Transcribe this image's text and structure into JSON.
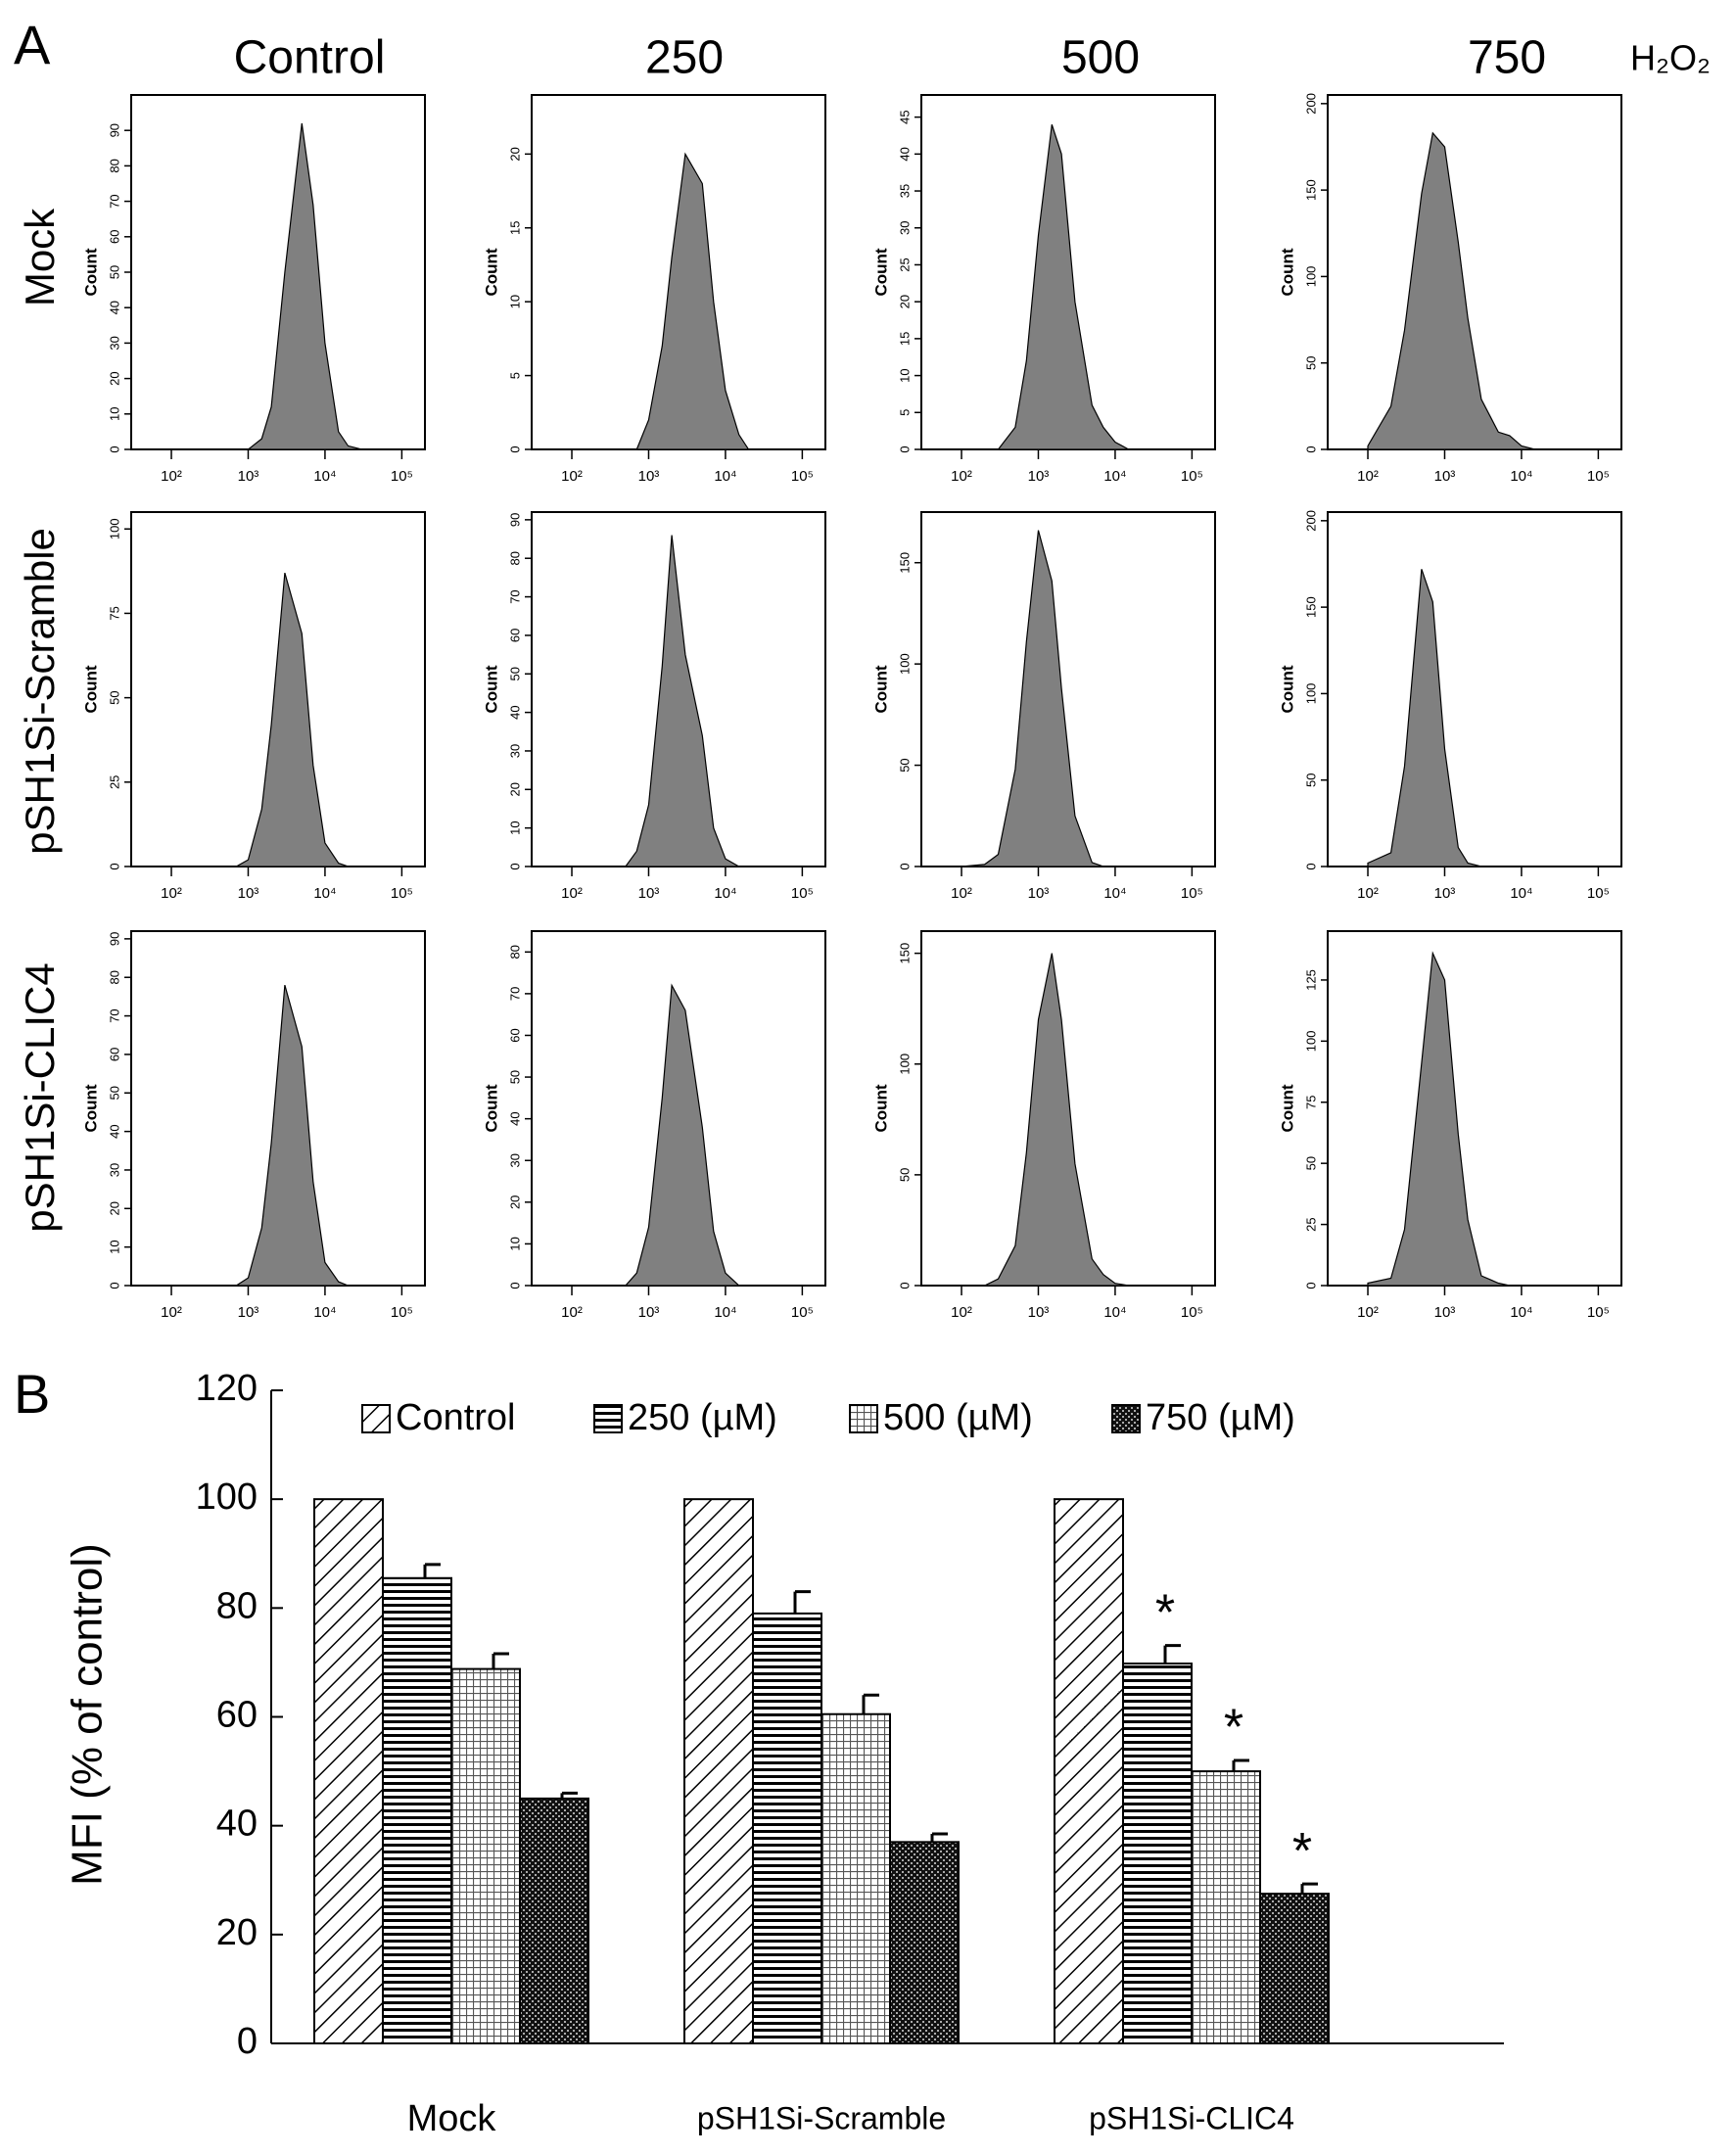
{
  "labels": {
    "panel_a": "A",
    "panel_b": "B",
    "columns": [
      "Control",
      "250",
      "500",
      "750",
      "H₂O₂"
    ],
    "rows": [
      "Mock",
      "pSH1Si-Scramble",
      "pSH1Si-CLIC4"
    ]
  },
  "chart_data": [
    {
      "type": "histogram",
      "y_label": "Count",
      "log_x": true,
      "xlim": [
        30,
        200000
      ],
      "ylim": [
        0,
        100
      ],
      "xticks": [
        {
          "value": 100,
          "label": "10²"
        },
        {
          "value": 1000,
          "label": "10³"
        },
        {
          "value": 10000,
          "label": "10⁴"
        },
        {
          "value": 100000,
          "label": "10⁵"
        }
      ],
      "yticks": [
        0,
        10,
        20,
        30,
        40,
        50,
        60,
        70,
        80,
        90
      ],
      "color": "#808080",
      "x": [
        100,
        200,
        300,
        500,
        700,
        1000,
        1500,
        2000,
        3000,
        5000,
        7000,
        10000,
        15000,
        20000,
        30000,
        50000
      ],
      "values": [
        0,
        0,
        0,
        0,
        0,
        0,
        3,
        12,
        50,
        92,
        69,
        30,
        5,
        1,
        0,
        0
      ]
    },
    {
      "type": "histogram",
      "y_label": "Count",
      "log_x": true,
      "xlim": [
        30,
        200000
      ],
      "ylim": [
        0,
        24
      ],
      "xticks": [
        {
          "value": 100,
          "label": "10²"
        },
        {
          "value": 1000,
          "label": "10³"
        },
        {
          "value": 10000,
          "label": "10⁴"
        },
        {
          "value": 100000,
          "label": "10⁵"
        }
      ],
      "yticks": [
        0,
        5,
        10,
        15,
        20
      ],
      "color": "#808080",
      "x": [
        100,
        200,
        300,
        500,
        700,
        1000,
        1500,
        2000,
        3000,
        5000,
        7000,
        10000,
        15000,
        20000,
        30000,
        50000
      ],
      "values": [
        0,
        0,
        0,
        0,
        0,
        2,
        7,
        13,
        20,
        18,
        10,
        4,
        1,
        0,
        0,
        0
      ]
    },
    {
      "type": "histogram",
      "y_label": "Count",
      "log_x": true,
      "xlim": [
        30,
        200000
      ],
      "ylim": [
        0,
        48
      ],
      "xticks": [
        {
          "value": 100,
          "label": "10²"
        },
        {
          "value": 1000,
          "label": "10³"
        },
        {
          "value": 10000,
          "label": "10⁴"
        },
        {
          "value": 100000,
          "label": "10⁵"
        }
      ],
      "yticks": [
        0,
        5,
        10,
        15,
        20,
        25,
        30,
        35,
        40,
        45
      ],
      "color": "#808080",
      "x": [
        100,
        200,
        300,
        500,
        700,
        1000,
        1500,
        2000,
        3000,
        5000,
        7000,
        10000,
        15000,
        20000,
        30000,
        50000
      ],
      "values": [
        0,
        0,
        0,
        3,
        12,
        29,
        44,
        40,
        20,
        6,
        3,
        1,
        0,
        0,
        0,
        0
      ]
    },
    {
      "type": "histogram",
      "y_label": "Count",
      "log_x": true,
      "xlim": [
        30,
        200000
      ],
      "ylim": [
        0,
        205
      ],
      "xticks": [
        {
          "value": 100,
          "label": "10²"
        },
        {
          "value": 1000,
          "label": "10³"
        },
        {
          "value": 10000,
          "label": "10⁴"
        },
        {
          "value": 100000,
          "label": "10⁵"
        }
      ],
      "yticks": [
        0,
        50,
        100,
        150,
        200
      ],
      "color": "#808080",
      "x": [
        100,
        200,
        300,
        500,
        700,
        1000,
        1500,
        2000,
        3000,
        5000,
        7000,
        10000,
        15000,
        20000,
        30000,
        50000
      ],
      "values": [
        2,
        25,
        69,
        148,
        183,
        175,
        120,
        76,
        29,
        10,
        8,
        2,
        0,
        0,
        0,
        0
      ]
    },
    {
      "type": "histogram",
      "y_label": "Count",
      "log_x": true,
      "xlim": [
        30,
        200000
      ],
      "ylim": [
        0,
        105
      ],
      "xticks": [
        {
          "value": 100,
          "label": "10²"
        },
        {
          "value": 1000,
          "label": "10³"
        },
        {
          "value": 10000,
          "label": "10⁴"
        },
        {
          "value": 100000,
          "label": "10⁵"
        }
      ],
      "yticks": [
        0,
        25,
        50,
        75,
        100
      ],
      "color": "#808080",
      "x": [
        100,
        200,
        300,
        500,
        700,
        1000,
        1500,
        2000,
        3000,
        5000,
        7000,
        10000,
        15000,
        20000,
        30000,
        50000
      ],
      "values": [
        0,
        0,
        0,
        0,
        0,
        2,
        17,
        42,
        87,
        69,
        30,
        7,
        1,
        0,
        0,
        0
      ]
    },
    {
      "type": "histogram",
      "y_label": "Count",
      "log_x": true,
      "xlim": [
        30,
        200000
      ],
      "ylim": [
        0,
        92
      ],
      "xticks": [
        {
          "value": 100,
          "label": "10²"
        },
        {
          "value": 1000,
          "label": "10³"
        },
        {
          "value": 10000,
          "label": "10⁴"
        },
        {
          "value": 100000,
          "label": "10⁵"
        }
      ],
      "yticks": [
        0,
        10,
        20,
        30,
        40,
        50,
        60,
        70,
        80,
        90
      ],
      "color": "#808080",
      "x": [
        100,
        200,
        300,
        500,
        700,
        1000,
        1500,
        2000,
        3000,
        5000,
        7000,
        10000,
        15000,
        20000,
        30000,
        50000
      ],
      "values": [
        0,
        0,
        0,
        0,
        4,
        16,
        52,
        86,
        55,
        34,
        10,
        2,
        0,
        0,
        0,
        0
      ]
    },
    {
      "type": "histogram",
      "y_label": "Count",
      "log_x": true,
      "xlim": [
        30,
        200000
      ],
      "ylim": [
        0,
        175
      ],
      "xticks": [
        {
          "value": 100,
          "label": "10²"
        },
        {
          "value": 1000,
          "label": "10³"
        },
        {
          "value": 10000,
          "label": "10⁴"
        },
        {
          "value": 100000,
          "label": "10⁵"
        }
      ],
      "yticks": [
        0,
        50,
        100,
        150
      ],
      "color": "#808080",
      "x": [
        100,
        200,
        300,
        500,
        700,
        1000,
        1500,
        2000,
        3000,
        5000,
        7000,
        10000,
        15000,
        20000,
        30000,
        50000
      ],
      "values": [
        0,
        1,
        6,
        48,
        111,
        166,
        141,
        88,
        25,
        2,
        0,
        0,
        0,
        0,
        0,
        0
      ]
    },
    {
      "type": "histogram",
      "y_label": "Count",
      "log_x": true,
      "xlim": [
        30,
        200000
      ],
      "ylim": [
        0,
        205
      ],
      "xticks": [
        {
          "value": 100,
          "label": "10²"
        },
        {
          "value": 1000,
          "label": "10³"
        },
        {
          "value": 10000,
          "label": "10⁴"
        },
        {
          "value": 100000,
          "label": "10⁵"
        }
      ],
      "yticks": [
        0,
        50,
        100,
        150,
        200
      ],
      "color": "#808080",
      "x": [
        100,
        200,
        300,
        500,
        700,
        1000,
        1500,
        2000,
        3000,
        5000,
        7000,
        10000,
        15000,
        20000,
        30000,
        50000
      ],
      "values": [
        2,
        8,
        58,
        172,
        153,
        68,
        11,
        2,
        0,
        0,
        0,
        0,
        0,
        0,
        0,
        0
      ]
    },
    {
      "type": "histogram",
      "y_label": "Count",
      "log_x": true,
      "xlim": [
        30,
        200000
      ],
      "ylim": [
        0,
        92
      ],
      "xticks": [
        {
          "value": 100,
          "label": "10²"
        },
        {
          "value": 1000,
          "label": "10³"
        },
        {
          "value": 10000,
          "label": "10⁴"
        },
        {
          "value": 100000,
          "label": "10⁵"
        }
      ],
      "yticks": [
        0,
        10,
        20,
        30,
        40,
        50,
        60,
        70,
        80,
        90
      ],
      "color": "#808080",
      "x": [
        100,
        200,
        300,
        500,
        700,
        1000,
        1500,
        2000,
        3000,
        5000,
        7000,
        10000,
        15000,
        20000,
        30000,
        50000
      ],
      "values": [
        0,
        0,
        0,
        0,
        0,
        2,
        15,
        37,
        78,
        62,
        27,
        6,
        1,
        0,
        0,
        0
      ]
    },
    {
      "type": "histogram",
      "y_label": "Count",
      "log_x": true,
      "xlim": [
        30,
        200000
      ],
      "ylim": [
        0,
        85
      ],
      "xticks": [
        {
          "value": 100,
          "label": "10²"
        },
        {
          "value": 1000,
          "label": "10³"
        },
        {
          "value": 10000,
          "label": "10⁴"
        },
        {
          "value": 100000,
          "label": "10⁵"
        }
      ],
      "yticks": [
        0,
        10,
        20,
        30,
        40,
        50,
        60,
        70,
        80
      ],
      "color": "#808080",
      "x": [
        100,
        200,
        300,
        500,
        700,
        1000,
        1500,
        2000,
        3000,
        5000,
        7000,
        10000,
        15000,
        20000,
        30000,
        50000
      ],
      "values": [
        0,
        0,
        0,
        0,
        3,
        14,
        45,
        72,
        66,
        38,
        13,
        3,
        0,
        0,
        0,
        0
      ]
    },
    {
      "type": "histogram",
      "y_label": "Count",
      "log_x": true,
      "xlim": [
        30,
        200000
      ],
      "ylim": [
        0,
        160
      ],
      "xticks": [
        {
          "value": 100,
          "label": "10²"
        },
        {
          "value": 1000,
          "label": "10³"
        },
        {
          "value": 10000,
          "label": "10⁴"
        },
        {
          "value": 100000,
          "label": "10⁵"
        }
      ],
      "yticks": [
        0,
        50,
        100,
        150
      ],
      "color": "#808080",
      "x": [
        100,
        200,
        300,
        500,
        700,
        1000,
        1500,
        2000,
        3000,
        5000,
        7000,
        10000,
        15000,
        20000,
        30000,
        50000
      ],
      "values": [
        0,
        0,
        3,
        18,
        60,
        120,
        150,
        120,
        55,
        12,
        5,
        1,
        0,
        0,
        0,
        0
      ]
    },
    {
      "type": "histogram",
      "y_label": "Count",
      "log_x": true,
      "xlim": [
        30,
        200000
      ],
      "ylim": [
        0,
        145
      ],
      "xticks": [
        {
          "value": 100,
          "label": "10²"
        },
        {
          "value": 1000,
          "label": "10³"
        },
        {
          "value": 10000,
          "label": "10⁴"
        },
        {
          "value": 100000,
          "label": "10⁵"
        }
      ],
      "yticks": [
        0,
        25,
        50,
        75,
        100,
        125
      ],
      "color": "#808080",
      "x": [
        100,
        200,
        300,
        500,
        700,
        1000,
        1500,
        2000,
        3000,
        5000,
        7000,
        10000,
        15000,
        20000,
        30000,
        50000
      ],
      "values": [
        1,
        3,
        23,
        91,
        136,
        125,
        62,
        27,
        4,
        1,
        0,
        0,
        0,
        0,
        0,
        0
      ]
    },
    {
      "type": "bar",
      "y_label": "MFI  (% of control)",
      "ylim": [
        0,
        120
      ],
      "yticks": [
        0,
        20,
        40,
        60,
        80,
        100,
        120
      ],
      "categories": [
        "Mock",
        "pSH1Si-Scramble",
        "pSH1Si-CLIC4"
      ],
      "series": [
        {
          "name": "Control",
          "pattern": "diagonal",
          "color": "#000000",
          "values": [
            100,
            100,
            100
          ]
        },
        {
          "name": "250 (µM)",
          "pattern": "horizontal",
          "color": "#000000",
          "values": [
            85.5,
            79,
            69.8
          ],
          "errors": [
            2.5,
            4,
            3.3
          ],
          "markers": [
            null,
            null,
            "*"
          ]
        },
        {
          "name": "500 (µM)",
          "pattern": "grid",
          "color": "#000000",
          "values": [
            68.8,
            60.5,
            50
          ],
          "errors": [
            2.8,
            3.5,
            2
          ],
          "markers": [
            null,
            null,
            "*"
          ]
        },
        {
          "name": "750 (µM)",
          "pattern": "dots",
          "color": "#000000",
          "values": [
            45,
            37,
            27.5
          ],
          "errors": [
            1,
            1.5,
            1.8
          ],
          "markers": [
            null,
            null,
            "*"
          ]
        }
      ]
    }
  ]
}
